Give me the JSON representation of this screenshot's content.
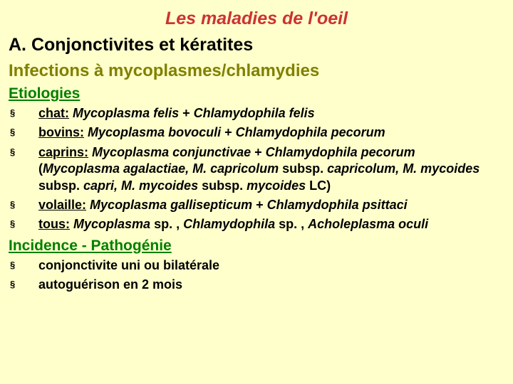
{
  "title": "Les maladies de l'oeil",
  "section_label": "A.  Conjonctivites et kératites",
  "subheading": "Infections à mycoplasmes/chlamydies",
  "etiologies": {
    "heading": "Etiologies",
    "items": [
      {
        "lead": "chat:",
        "italic_a": "Mycoplasma felis",
        "plus": " + ",
        "italic_b": "Chlamydophila felis"
      },
      {
        "lead": "bovins:",
        "italic_a": "Mycoplasma bovoculi",
        "plus": " + ",
        "italic_b": "Chlamydophila pecorum"
      },
      {
        "lead": "caprins:",
        "spacer": "   ",
        "italic_a": "Mycoplasma conjunctivae",
        "plus": " + ",
        "italic_b": "Chlamydophila pecorum",
        "extra_open": "(",
        "extra_i1": "Mycoplasma agalactiae, M. capricolum",
        "extra_t1": " subsp. ",
        "extra_i2": "capricolum, M. mycoides",
        "extra_t2": " subsp. ",
        "extra_i3": "capri, M. mycoides",
        "extra_t3": " subsp. ",
        "extra_i4": "mycoides",
        "extra_t4": " LC)"
      },
      {
        "lead": "volaille:",
        "italic_a": "Mycoplasma gallisepticum",
        "plus": " + ",
        "italic_b": "Chlamydophila psittaci"
      },
      {
        "lead": "tous:",
        "italic_a": "Mycoplasma",
        "t1": " sp. , ",
        "italic_b": "Chlamydophila",
        "t2": " sp. , ",
        "italic_c": "Acholeplasma oculi"
      }
    ]
  },
  "incidence": {
    "heading": "Incidence - Pathogénie",
    "items": [
      {
        "text": "conjonctivite uni ou bilatérale"
      },
      {
        "text": "autoguérison en 2 mois"
      }
    ]
  },
  "colors": {
    "background": "#ffffcc",
    "title": "#cc3333",
    "section": "#000000",
    "subheading": "#808000",
    "subsub": "#008000",
    "body": "#000000"
  },
  "fonts": {
    "title_size": 25,
    "section_size": 25,
    "subheading_size": 24,
    "subsub_size": 21,
    "body_size": 18
  }
}
